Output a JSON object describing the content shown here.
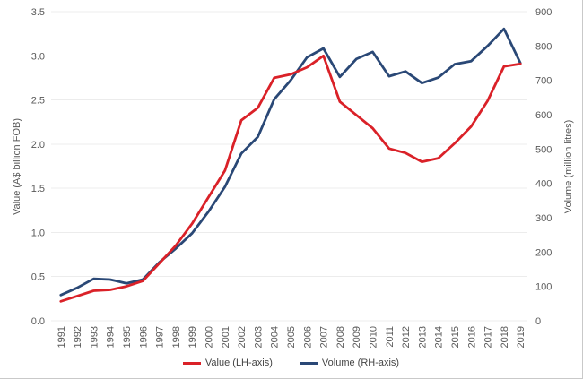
{
  "chart": {
    "y_left_label": "Value (A$ billion FOB)",
    "y_right_label": "Volume (million litres)",
    "legend": {
      "value_label": "Value (LH-axis)",
      "volume_label": "Volume (RH-axis)"
    }
  },
  "chart_data": {
    "type": "line",
    "x": [
      1991,
      1992,
      1993,
      1994,
      1995,
      1996,
      1997,
      1998,
      1999,
      2000,
      2001,
      2002,
      2003,
      2004,
      2005,
      2006,
      2007,
      2008,
      2009,
      2010,
      2011,
      2012,
      2013,
      2014,
      2015,
      2016,
      2017,
      2018,
      2019
    ],
    "x_tick_labels": [
      "1991",
      "1992",
      "1993",
      "1994",
      "1995",
      "1996",
      "1997",
      "1998",
      "1999",
      "2000",
      "2001",
      "2002",
      "2003",
      "2004",
      "2005",
      "2006",
      "2007",
      "2008",
      "2009",
      "2010",
      "2011",
      "2012",
      "2013",
      "2014",
      "2015",
      "2016",
      "2017",
      "2018",
      "2019"
    ],
    "series": [
      {
        "name": "Value (LH-axis)",
        "axis": "left",
        "color": "#da2128",
        "values": [
          0.22,
          0.28,
          0.34,
          0.35,
          0.39,
          0.45,
          0.65,
          0.85,
          1.1,
          1.4,
          1.7,
          2.27,
          2.41,
          2.75,
          2.79,
          2.87,
          3.0,
          2.48,
          2.33,
          2.18,
          1.95,
          1.9,
          1.8,
          1.84,
          2.01,
          2.2,
          2.49,
          2.88,
          2.91
        ]
      },
      {
        "name": "Volume (RH-axis)",
        "axis": "right",
        "color": "#2a4876",
        "values": [
          75,
          96,
          122,
          120,
          109,
          120,
          170,
          210,
          255,
          318,
          390,
          487,
          535,
          645,
          700,
          767,
          793,
          710,
          762,
          783,
          712,
          726,
          692,
          708,
          747,
          756,
          800,
          850,
          750
        ]
      }
    ],
    "y_left": {
      "label": "Value (A$ billion FOB)",
      "min": 0,
      "max": 3.5,
      "step": 0.5,
      "tick_labels": [
        "0.0",
        "0.5",
        "1.0",
        "1.5",
        "2.0",
        "2.5",
        "3.0",
        "3.5"
      ]
    },
    "y_right": {
      "label": "Volume (million litres)",
      "min": 0,
      "max": 900,
      "step": 100,
      "tick_labels": [
        "0",
        "100",
        "200",
        "300",
        "400",
        "500",
        "600",
        "700",
        "800",
        "900"
      ]
    },
    "grid": "horizontal-only",
    "legend_position": "bottom",
    "background": "#ffffff",
    "gridline_color": "#ececec",
    "text_color": "#595959"
  }
}
